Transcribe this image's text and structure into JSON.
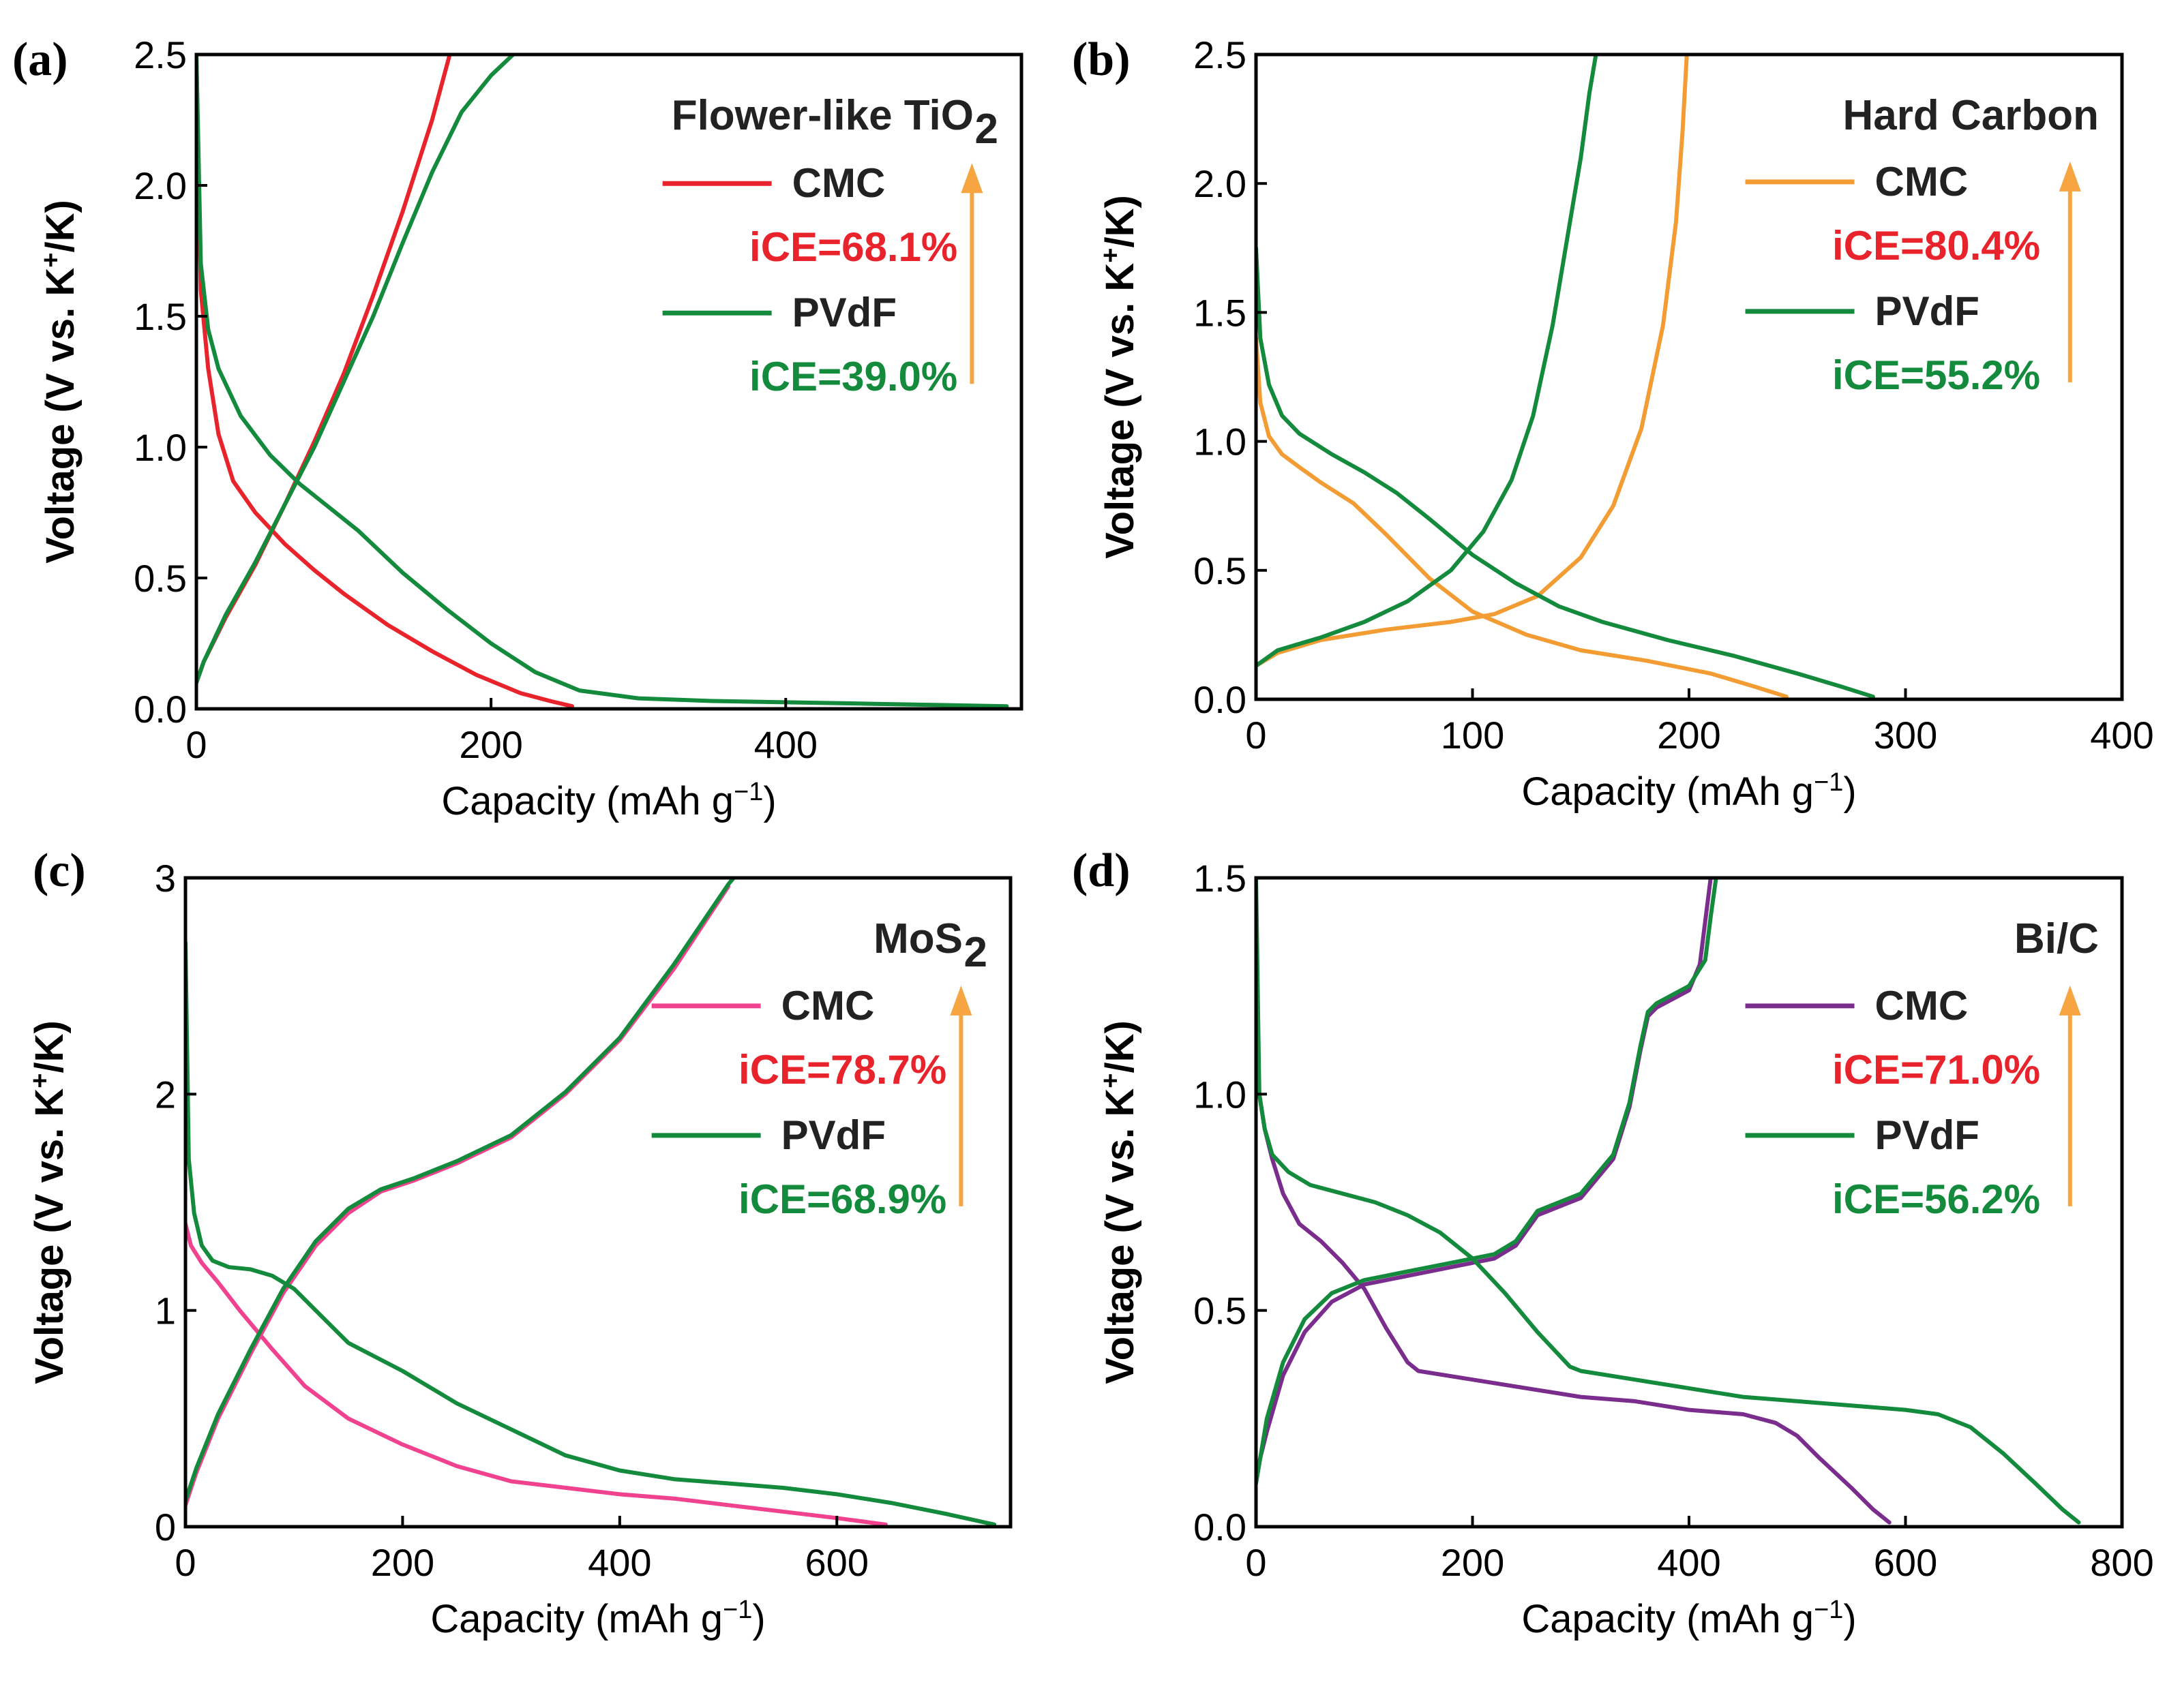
{
  "colors": {
    "cmc_a": "#e8232b",
    "cmc_b": "#f39c33",
    "cmc_c": "#f0428f",
    "cmc_d": "#7b2d8e",
    "pvdf": "#138a3c",
    "ice_red": "#e8232b",
    "ice_green": "#138a3c",
    "arrow": "#f6a540"
  },
  "chart_data": [
    {
      "panel": "(a)",
      "type": "line",
      "title": "Flower-like TiO",
      "title_sub": "2",
      "xlabel": "Capacity (mAh g",
      "xlabel_sup": "−1",
      "xlabel_end": ")",
      "ylabel": "Voltage (V vs. K",
      "ylabel_sup": "+",
      "ylabel_end": "/K)",
      "xlim": [
        0,
        560
      ],
      "ylim": [
        0,
        2.5
      ],
      "xticks": [
        0,
        200,
        400
      ],
      "xtick_labels": [
        "0",
        "200",
        "400"
      ],
      "yticks": [
        0,
        0.5,
        1.0,
        1.5,
        2.0,
        2.5
      ],
      "ytick_labels": [
        "0.0",
        "0.5",
        "1.0",
        "1.5",
        "2.0",
        "2.5"
      ],
      "legend": [
        {
          "name": "CMC",
          "ice": "iCE=68.1%",
          "color_key": "cmc_a",
          "ice_color_key": "ice_red"
        },
        {
          "name": "PVdF",
          "ice": "iCE=39.0%",
          "color_key": "pvdf",
          "ice_color_key": "ice_green"
        }
      ],
      "series": [
        {
          "name": "CMC discharge",
          "color_key": "cmc_a",
          "x": [
            0,
            3,
            8,
            15,
            25,
            40,
            60,
            80,
            100,
            130,
            160,
            190,
            220,
            240,
            255
          ],
          "y": [
            2.5,
            1.6,
            1.3,
            1.05,
            0.87,
            0.75,
            0.63,
            0.53,
            0.44,
            0.32,
            0.22,
            0.13,
            0.06,
            0.03,
            0.01
          ]
        },
        {
          "name": "CMC charge",
          "color_key": "cmc_a",
          "x": [
            0,
            5,
            20,
            40,
            60,
            80,
            100,
            120,
            140,
            160,
            172
          ],
          "y": [
            0.1,
            0.18,
            0.35,
            0.55,
            0.78,
            1.02,
            1.28,
            1.58,
            1.9,
            2.25,
            2.5
          ]
        },
        {
          "name": "PVdF discharge",
          "color_key": "pvdf",
          "x": [
            0,
            3,
            8,
            15,
            30,
            50,
            70,
            90,
            110,
            140,
            170,
            200,
            230,
            260,
            300,
            350,
            400,
            450,
            500,
            550
          ],
          "y": [
            2.5,
            1.7,
            1.45,
            1.3,
            1.12,
            0.97,
            0.86,
            0.77,
            0.68,
            0.52,
            0.38,
            0.25,
            0.14,
            0.07,
            0.04,
            0.03,
            0.025,
            0.02,
            0.015,
            0.01
          ]
        },
        {
          "name": "PVdF charge",
          "color_key": "pvdf",
          "x": [
            0,
            5,
            20,
            40,
            60,
            80,
            100,
            120,
            140,
            160,
            180,
            200,
            215
          ],
          "y": [
            0.1,
            0.18,
            0.36,
            0.56,
            0.78,
            1.0,
            1.25,
            1.5,
            1.78,
            2.05,
            2.28,
            2.42,
            2.5
          ]
        }
      ]
    },
    {
      "panel": "(b)",
      "type": "line",
      "title": "Hard Carbon",
      "title_sub": "",
      "xlabel": "Capacity (mAh g",
      "xlabel_sup": "−1",
      "xlabel_end": ")",
      "ylabel": "Voltage (V vs. K",
      "ylabel_sup": "+",
      "ylabel_end": "/K)",
      "xlim": [
        0,
        400
      ],
      "ylim": [
        0,
        2.5
      ],
      "xticks": [
        0,
        100,
        200,
        300,
        400
      ],
      "xtick_labels": [
        "0",
        "100",
        "200",
        "300",
        "400"
      ],
      "yticks": [
        0,
        0.5,
        1.0,
        1.5,
        2.0,
        2.5
      ],
      "ytick_labels": [
        "0.0",
        "0.5",
        "1.0",
        "1.5",
        "2.0",
        "2.5"
      ],
      "legend": [
        {
          "name": "CMC",
          "ice": "iCE=80.4%",
          "color_key": "cmc_b",
          "ice_color_key": "ice_red"
        },
        {
          "name": "PVdF",
          "ice": "iCE=55.2%",
          "color_key": "pvdf",
          "ice_color_key": "ice_green"
        }
      ],
      "series": [
        {
          "name": "CMC discharge",
          "color_key": "cmc_b",
          "x": [
            0,
            2,
            6,
            12,
            20,
            30,
            45,
            60,
            80,
            100,
            125,
            150,
            180,
            210,
            230,
            245
          ],
          "y": [
            1.4,
            1.15,
            1.02,
            0.95,
            0.9,
            0.84,
            0.76,
            0.64,
            0.47,
            0.34,
            0.25,
            0.19,
            0.15,
            0.1,
            0.05,
            0.01
          ]
        },
        {
          "name": "CMC charge",
          "color_key": "cmc_b",
          "x": [
            0,
            10,
            30,
            60,
            90,
            110,
            130,
            150,
            165,
            178,
            188,
            194,
            197,
            199
          ],
          "y": [
            0.13,
            0.18,
            0.23,
            0.27,
            0.3,
            0.33,
            0.4,
            0.55,
            0.75,
            1.05,
            1.45,
            1.85,
            2.2,
            2.5
          ]
        },
        {
          "name": "PVdF discharge",
          "color_key": "pvdf",
          "x": [
            0,
            2,
            6,
            12,
            20,
            35,
            50,
            65,
            80,
            100,
            120,
            140,
            160,
            190,
            220,
            250,
            270,
            285
          ],
          "y": [
            1.75,
            1.4,
            1.22,
            1.1,
            1.03,
            0.95,
            0.88,
            0.8,
            0.7,
            0.56,
            0.45,
            0.36,
            0.3,
            0.23,
            0.17,
            0.1,
            0.05,
            0.01
          ]
        },
        {
          "name": "PVdF charge",
          "color_key": "pvdf",
          "x": [
            0,
            10,
            30,
            50,
            70,
            90,
            105,
            118,
            128,
            137,
            144,
            150,
            154,
            157
          ],
          "y": [
            0.13,
            0.19,
            0.24,
            0.3,
            0.38,
            0.5,
            0.65,
            0.85,
            1.1,
            1.45,
            1.8,
            2.1,
            2.35,
            2.5
          ]
        }
      ]
    },
    {
      "panel": "(c)",
      "type": "line",
      "title": "MoS",
      "title_sub": "2",
      "xlabel": "Capacity (mAh g",
      "xlabel_sup": "−1",
      "xlabel_end": ")",
      "ylabel": "Voltage (V vs. K",
      "ylabel_sup": "+",
      "ylabel_end": "/K)",
      "xlim": [
        0,
        760
      ],
      "ylim": [
        0,
        3
      ],
      "xticks": [
        0,
        200,
        400,
        600
      ],
      "xtick_labels": [
        "0",
        "200",
        "400",
        "600"
      ],
      "yticks": [
        0,
        1,
        2,
        3
      ],
      "ytick_labels": [
        "0",
        "1",
        "2",
        "3"
      ],
      "legend": [
        {
          "name": "CMC",
          "ice": "iCE=78.7%",
          "color_key": "cmc_c",
          "ice_color_key": "ice_red"
        },
        {
          "name": "PVdF",
          "ice": "iCE=68.9%",
          "color_key": "pvdf",
          "ice_color_key": "ice_green"
        }
      ],
      "series": [
        {
          "name": "CMC discharge",
          "color_key": "cmc_c",
          "x": [
            0,
            5,
            15,
            30,
            50,
            80,
            110,
            150,
            200,
            250,
            300,
            350,
            400,
            450,
            500,
            550,
            600,
            630,
            645
          ],
          "y": [
            1.4,
            1.3,
            1.22,
            1.13,
            1.0,
            0.82,
            0.65,
            0.5,
            0.38,
            0.28,
            0.21,
            0.18,
            0.15,
            0.13,
            0.1,
            0.07,
            0.04,
            0.02,
            0.01
          ]
        },
        {
          "name": "CMC charge",
          "color_key": "cmc_c",
          "x": [
            0,
            10,
            30,
            60,
            90,
            120,
            150,
            180,
            210,
            250,
            300,
            350,
            400,
            450,
            500
          ],
          "y": [
            0.1,
            0.25,
            0.5,
            0.8,
            1.08,
            1.3,
            1.45,
            1.55,
            1.6,
            1.68,
            1.8,
            2.0,
            2.25,
            2.58,
            2.96
          ]
        },
        {
          "name": "PVdF discharge",
          "color_key": "pvdf",
          "x": [
            0,
            3,
            8,
            15,
            25,
            40,
            60,
            80,
            100,
            120,
            150,
            200,
            250,
            300,
            350,
            400,
            450,
            500,
            550,
            600,
            650,
            700,
            745
          ],
          "y": [
            2.7,
            1.7,
            1.45,
            1.3,
            1.23,
            1.2,
            1.19,
            1.16,
            1.1,
            1.0,
            0.85,
            0.72,
            0.57,
            0.45,
            0.33,
            0.26,
            0.22,
            0.2,
            0.18,
            0.15,
            0.11,
            0.06,
            0.01
          ]
        },
        {
          "name": "PVdF charge",
          "color_key": "pvdf",
          "x": [
            0,
            10,
            30,
            60,
            90,
            120,
            150,
            180,
            210,
            250,
            300,
            350,
            400,
            450,
            500,
            505
          ],
          "y": [
            0.12,
            0.27,
            0.52,
            0.82,
            1.1,
            1.32,
            1.47,
            1.56,
            1.61,
            1.69,
            1.81,
            2.01,
            2.26,
            2.6,
            2.97,
            3.0
          ]
        }
      ]
    },
    {
      "panel": "(d)",
      "type": "line",
      "title": "Bi/C",
      "title_sub": "",
      "xlabel": "Capacity (mAh g",
      "xlabel_sup": "−1",
      "xlabel_end": ")",
      "ylabel": "Voltage (V vs. K",
      "ylabel_sup": "+",
      "ylabel_end": "/K)",
      "xlim": [
        0,
        800
      ],
      "ylim": [
        0,
        1.5
      ],
      "xticks": [
        0,
        200,
        400,
        600,
        800
      ],
      "xtick_labels": [
        "0",
        "200",
        "400",
        "600",
        "800"
      ],
      "yticks": [
        0,
        0.5,
        1.0,
        1.5
      ],
      "ytick_labels": [
        "0.0",
        "0.5",
        "1.0",
        "1.5"
      ],
      "legend": [
        {
          "name": "CMC",
          "ice": "iCE=71.0%",
          "color_key": "cmc_d",
          "ice_color_key": "ice_red"
        },
        {
          "name": "PVdF",
          "ice": "iCE=56.2%",
          "color_key": "pvdf",
          "ice_color_key": "ice_green"
        }
      ],
      "series": [
        {
          "name": "CMC discharge",
          "color_key": "cmc_d",
          "x": [
            0,
            3,
            8,
            15,
            25,
            40,
            60,
            80,
            100,
            120,
            140,
            150,
            200,
            250,
            300,
            350,
            400,
            450,
            480,
            500,
            520,
            550,
            570,
            585
          ],
          "y": [
            1.15,
            1.0,
            0.92,
            0.85,
            0.77,
            0.7,
            0.66,
            0.61,
            0.55,
            0.46,
            0.38,
            0.36,
            0.34,
            0.32,
            0.3,
            0.29,
            0.27,
            0.26,
            0.24,
            0.21,
            0.16,
            0.09,
            0.04,
            0.01
          ]
        },
        {
          "name": "CMC charge",
          "color_key": "cmc_d",
          "x": [
            0,
            10,
            25,
            45,
            70,
            100,
            140,
            180,
            220,
            240,
            260,
            300,
            330,
            345,
            355,
            362,
            370,
            400,
            410,
            415,
            420
          ],
          "y": [
            0.12,
            0.22,
            0.35,
            0.45,
            0.52,
            0.56,
            0.58,
            0.6,
            0.62,
            0.65,
            0.72,
            0.76,
            0.85,
            0.97,
            1.1,
            1.18,
            1.2,
            1.24,
            1.3,
            1.4,
            1.5
          ]
        },
        {
          "name": "PVdF discharge",
          "color_key": "pvdf",
          "x": [
            0,
            3,
            8,
            15,
            30,
            50,
            80,
            110,
            140,
            170,
            200,
            230,
            260,
            290,
            300,
            350,
            400,
            450,
            500,
            550,
            600,
            630,
            660,
            690,
            720,
            745,
            760
          ],
          "y": [
            1.5,
            1.0,
            0.92,
            0.86,
            0.82,
            0.79,
            0.77,
            0.75,
            0.72,
            0.68,
            0.62,
            0.54,
            0.45,
            0.37,
            0.36,
            0.34,
            0.32,
            0.3,
            0.29,
            0.28,
            0.27,
            0.26,
            0.23,
            0.17,
            0.1,
            0.04,
            0.01
          ]
        },
        {
          "name": "PVdF charge",
          "color_key": "pvdf",
          "x": [
            0,
            10,
            25,
            45,
            70,
            100,
            140,
            180,
            220,
            240,
            260,
            300,
            330,
            345,
            355,
            362,
            370,
            400,
            415,
            420,
            425
          ],
          "y": [
            0.1,
            0.25,
            0.38,
            0.48,
            0.54,
            0.57,
            0.59,
            0.61,
            0.63,
            0.66,
            0.73,
            0.77,
            0.86,
            0.98,
            1.11,
            1.19,
            1.21,
            1.25,
            1.31,
            1.41,
            1.5
          ]
        }
      ]
    }
  ]
}
